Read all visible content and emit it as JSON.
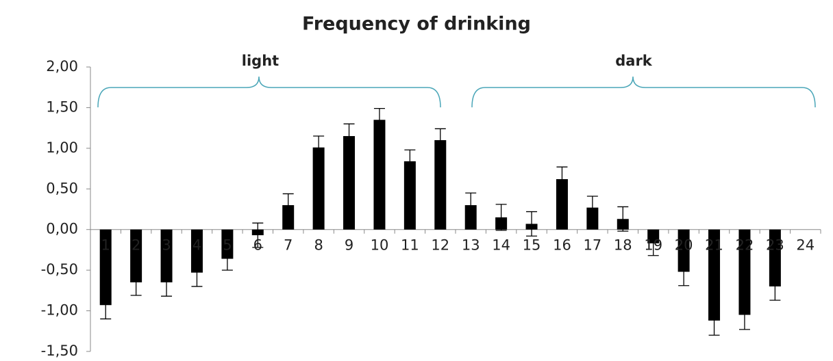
{
  "chart_data": {
    "type": "bar",
    "title": "Frequency of drinking",
    "categories": [
      "1",
      "2",
      "3",
      "4",
      "5",
      "6",
      "7",
      "8",
      "9",
      "10",
      "11",
      "12",
      "13",
      "14",
      "15",
      "16",
      "17",
      "18",
      "19",
      "20",
      "21",
      "22",
      "23",
      "24"
    ],
    "values": [
      -0.93,
      -0.65,
      -0.65,
      -0.53,
      -0.36,
      -0.07,
      0.3,
      1.01,
      1.15,
      1.35,
      0.84,
      1.1,
      0.3,
      0.15,
      0.07,
      0.62,
      0.27,
      0.13,
      -0.17,
      -0.52,
      -1.12,
      -1.05,
      -0.7,
      null
    ],
    "errors": [
      0.17,
      0.16,
      0.17,
      0.17,
      0.14,
      0.15,
      0.14,
      0.14,
      0.15,
      0.14,
      0.14,
      0.14,
      0.15,
      0.16,
      0.15,
      0.15,
      0.14,
      0.15,
      0.15,
      0.17,
      0.18,
      0.18,
      0.17,
      null
    ],
    "color": "#000000",
    "ylim": [
      -1.5,
      2.0
    ],
    "yticks": [
      {
        "value": -1.5,
        "label": "-1,50"
      },
      {
        "value": -1.0,
        "label": "-1,00"
      },
      {
        "value": -0.5,
        "label": "-0,50"
      },
      {
        "value": 0,
        "label": "0,00"
      },
      {
        "value": 0.5,
        "label": "0,50"
      },
      {
        "value": 1.0,
        "label": "1,00"
      },
      {
        "value": 1.5,
        "label": "1,50"
      },
      {
        "value": 2.0,
        "label": "2,00"
      }
    ],
    "annotations": [
      {
        "text": "light",
        "color": "#1fa3dc"
      },
      {
        "text": "dark",
        "color": "#ff0000"
      }
    ]
  }
}
